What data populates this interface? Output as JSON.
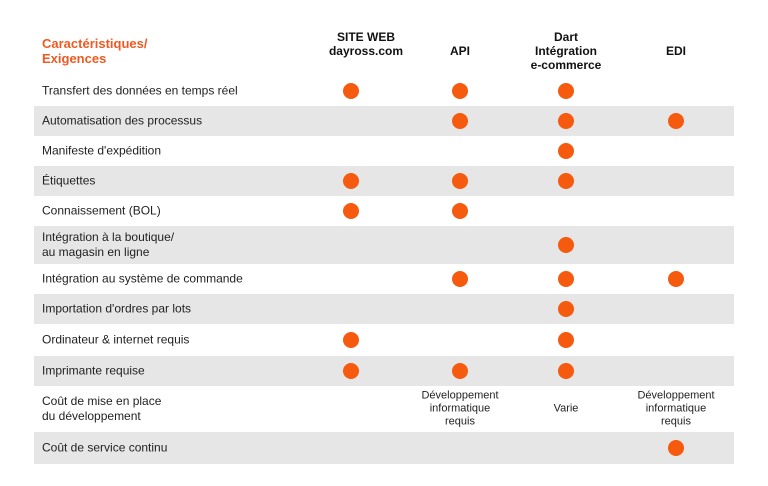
{
  "header": {
    "title_line1": "Caractéristiques/",
    "title_line2": "Exigences",
    "col1_line1": "SITE WEB",
    "col1_line2": "dayross.com",
    "col2": "API",
    "col3_line1": "Dart",
    "col3_line2": "Intégration",
    "col3_line3": "e-commerce",
    "col4": "EDI"
  },
  "colors": {
    "accent": "#f05a22",
    "dot": "#f55a0f",
    "row_shade": "#e6e6e6"
  },
  "rows": [
    {
      "label": "Transfert des données en temps réel",
      "web": true,
      "api": true,
      "dart": true,
      "edi": false
    },
    {
      "label": "Automatisation des processus",
      "web": false,
      "api": true,
      "dart": true,
      "edi": true
    },
    {
      "label": "Manifeste d'expédition",
      "web": false,
      "api": false,
      "dart": true,
      "edi": false
    },
    {
      "label": "Étiquettes",
      "web": true,
      "api": true,
      "dart": true,
      "edi": false
    },
    {
      "label": "Connaissement (BOL)",
      "web": true,
      "api": true,
      "dart": false,
      "edi": false
    },
    {
      "label_line1": "Intégration à la boutique/",
      "label_line2": "au magasin en ligne",
      "web": false,
      "api": false,
      "dart": true,
      "edi": false
    },
    {
      "label": "Intégration au système de commande",
      "web": false,
      "api": true,
      "dart": true,
      "edi": true
    },
    {
      "label": "Importation d'ordres par lots",
      "web": false,
      "api": false,
      "dart": true,
      "edi": false
    },
    {
      "label": "Ordinateur & internet requis",
      "web": true,
      "api": false,
      "dart": true,
      "edi": false
    },
    {
      "label": "Imprimante requise",
      "web": true,
      "api": true,
      "dart": true,
      "edi": false
    },
    {
      "label_line1": "Coût de mise en place",
      "label_line2": "du développement",
      "api_note_l1": "Développement",
      "api_note_l2": "informatique",
      "api_note_l3": "requis",
      "dart_note": "Varie",
      "edi_note_l1": "Développement",
      "edi_note_l2": "informatique",
      "edi_note_l3": "requis"
    },
    {
      "label": "Coût de service continu",
      "web": false,
      "api": false,
      "dart": false,
      "edi": true
    }
  ]
}
